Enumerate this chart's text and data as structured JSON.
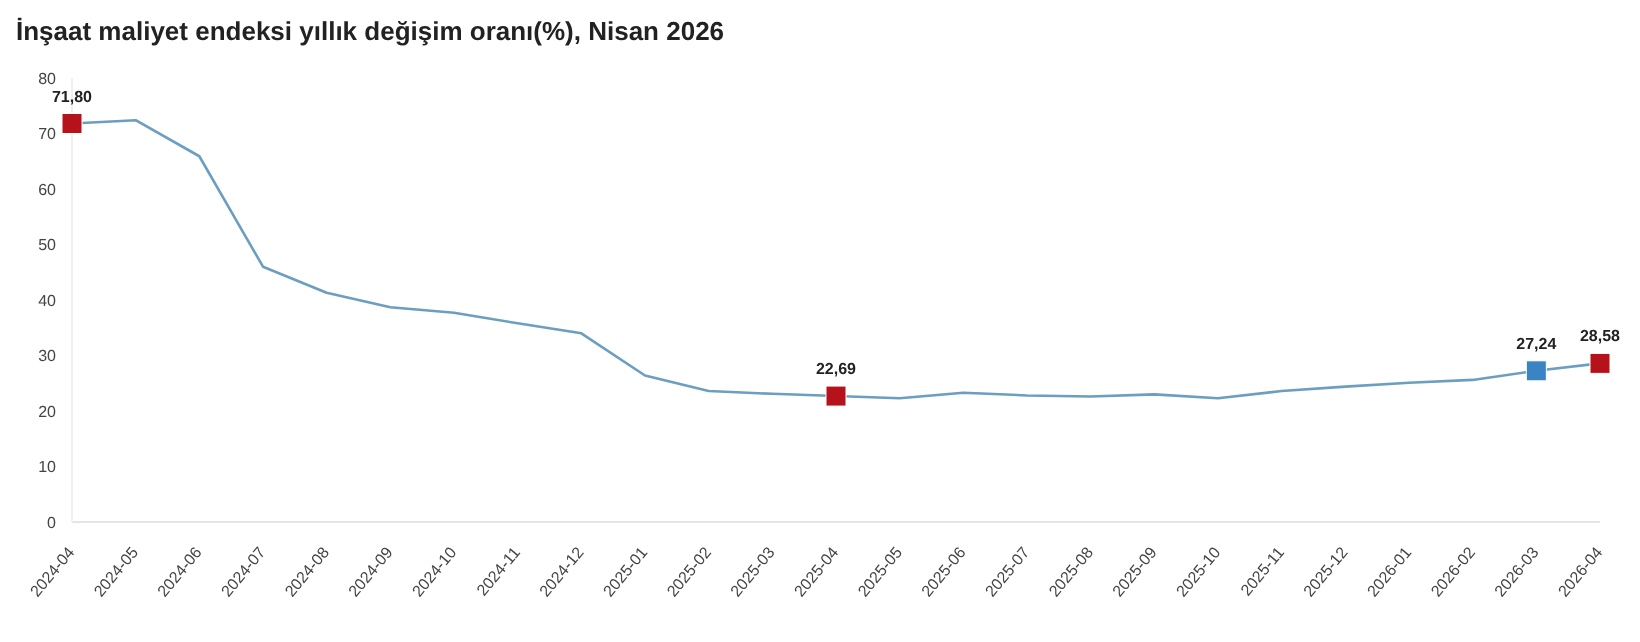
{
  "chart_data": {
    "type": "line",
    "title": "İnşaat maliyet endeksi yıllık değişim oranı(%), Nisan 2026",
    "categories": [
      "2024-04",
      "2024-05",
      "2024-06",
      "2024-07",
      "2024-08",
      "2024-09",
      "2024-10",
      "2024-11",
      "2024-12",
      "2025-01",
      "2025-02",
      "2025-03",
      "2025-04",
      "2025-05",
      "2025-06",
      "2025-07",
      "2025-08",
      "2025-09",
      "2025-10",
      "2025-11",
      "2025-12",
      "2026-01",
      "2026-02",
      "2026-03",
      "2026-04"
    ],
    "series": [
      {
        "color": "#6b9ec0",
        "values": [
          71.8,
          72.4,
          65.9,
          46.0,
          41.3,
          38.7,
          37.7,
          35.8,
          34.0,
          26.4,
          23.6,
          23.1,
          22.69,
          22.3,
          23.3,
          22.8,
          22.6,
          23.0,
          22.3,
          23.6,
          24.4,
          25.1,
          25.6,
          27.24,
          28.58
        ],
        "colors": [
          "#b5121b",
          null,
          null,
          null,
          null,
          null,
          null,
          null,
          null,
          null,
          null,
          null,
          "#b5121b",
          null,
          null,
          null,
          null,
          null,
          null,
          null,
          null,
          null,
          null,
          "#3a84c4",
          "#b5121b"
        ],
        "value_labels": [
          "71,80",
          null,
          null,
          null,
          null,
          null,
          null,
          null,
          null,
          null,
          null,
          null,
          "22,69",
          null,
          null,
          null,
          null,
          null,
          null,
          null,
          null,
          null,
          null,
          "27,24",
          "28,58"
        ]
      }
    ],
    "ylim": [
      0,
      80
    ],
    "yticks": [
      0,
      10,
      20,
      30,
      40,
      50,
      60,
      70,
      80
    ],
    "grid": false
  }
}
